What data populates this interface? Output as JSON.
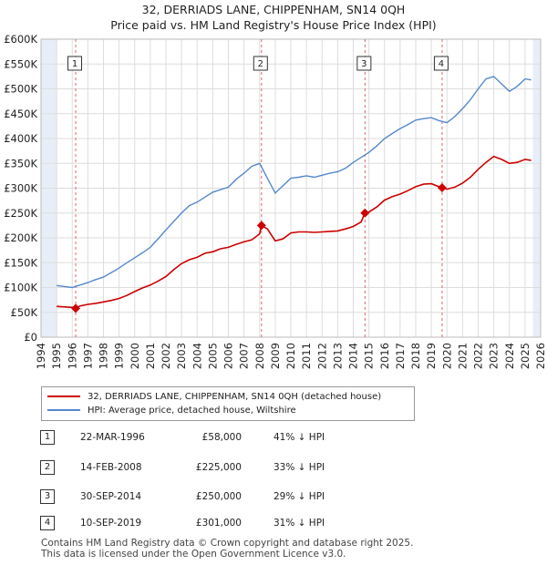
{
  "title": "32, DERRIADS LANE, CHIPPENHAM, SN14 0QH",
  "subtitle": "Price paid vs. HM Land Registry's House Price Index (HPI)",
  "legend": [
    {
      "label": "32, DERRIADS LANE, CHIPPENHAM, SN14 0QH (detached house)",
      "color": "#cc0000"
    },
    {
      "label": "HPI: Average price, detached house, Wiltshire",
      "color": "#5588cc"
    }
  ],
  "sales": [
    {
      "num": "1",
      "date": "22-MAR-1996",
      "price": "£58,000",
      "hpi": "41% ↓ HPI",
      "t": 1996.22,
      "value": 58000
    },
    {
      "num": "2",
      "date": "14-FEB-2008",
      "price": "£225,000",
      "hpi": "33% ↓ HPI",
      "t": 2008.12,
      "value": 225000
    },
    {
      "num": "3",
      "date": "30-SEP-2014",
      "price": "£250,000",
      "hpi": "29% ↓ HPI",
      "t": 2014.75,
      "value": 250000
    },
    {
      "num": "4",
      "date": "10-SEP-2019",
      "price": "£301,000",
      "hpi": "31% ↓ HPI",
      "t": 2019.69,
      "value": 301000
    }
  ],
  "footer": {
    "line1": "Contains HM Land Registry data © Crown copyright and database right 2025.",
    "line2": "This data is licensed under the Open Government Licence v3.0."
  },
  "colors": {
    "property": "#cc0000",
    "hpi": "#5588cc",
    "shade": "#e8eef8",
    "grid": "#dddddd"
  },
  "chart_data": {
    "type": "line",
    "title": "32, DERRIADS LANE, CHIPPENHAM, SN14 0QH",
    "xlabel": "",
    "ylabel": "",
    "xlim": [
      1994,
      2026
    ],
    "ylim": [
      0,
      600000
    ],
    "x_ticks": [
      1994,
      1995,
      1996,
      1997,
      1998,
      1999,
      2000,
      2001,
      2002,
      2003,
      2004,
      2005,
      2006,
      2007,
      2008,
      2009,
      2010,
      2011,
      2012,
      2013,
      2014,
      2015,
      2016,
      2017,
      2018,
      2019,
      2020,
      2021,
      2022,
      2023,
      2024,
      2025,
      2026
    ],
    "y_ticks": [
      0,
      50000,
      100000,
      150000,
      200000,
      250000,
      300000,
      350000,
      400000,
      450000,
      500000,
      550000,
      600000
    ],
    "y_tick_labels": [
      "£0",
      "£50K",
      "£100K",
      "£150K",
      "£200K",
      "£250K",
      "£300K",
      "£350K",
      "£400K",
      "£450K",
      "£500K",
      "£550K",
      "£600K"
    ],
    "grid": true,
    "shaded_ranges": [
      [
        1994,
        1995
      ],
      [
        2025.5,
        2026
      ]
    ],
    "series": [
      {
        "name": "32, DERRIADS LANE, CHIPPENHAM, SN14 0QH (detached house)",
        "x": [
          1995.0,
          1995.5,
          1996.0,
          1996.22,
          1996.5,
          1997.0,
          1997.5,
          1998.0,
          1998.5,
          1999.0,
          1999.5,
          2000.0,
          2000.5,
          2001.0,
          2001.5,
          2002.0,
          2002.5,
          2003.0,
          2003.5,
          2004.0,
          2004.5,
          2005.0,
          2005.5,
          2006.0,
          2006.5,
          2007.0,
          2007.5,
          2008.0,
          2008.12,
          2008.5,
          2009.0,
          2009.5,
          2010.0,
          2010.5,
          2011.0,
          2011.5,
          2012.0,
          2012.5,
          2013.0,
          2013.5,
          2014.0,
          2014.5,
          2014.75,
          2015.0,
          2015.5,
          2016.0,
          2016.5,
          2017.0,
          2017.5,
          2018.0,
          2018.5,
          2019.0,
          2019.5,
          2019.69,
          2020.0,
          2020.5,
          2021.0,
          2021.5,
          2022.0,
          2022.5,
          2023.0,
          2023.5,
          2024.0,
          2024.5,
          2025.0,
          2025.4
        ],
        "values": [
          62000,
          61000,
          60000,
          58000,
          63000,
          66000,
          68000,
          71000,
          74000,
          78000,
          84000,
          92000,
          99000,
          105000,
          113000,
          122000,
          136000,
          148000,
          156000,
          161000,
          169000,
          172000,
          178000,
          181000,
          187000,
          192000,
          196000,
          208000,
          225000,
          218000,
          194000,
          198000,
          210000,
          212000,
          212000,
          211000,
          212000,
          213000,
          214000,
          218000,
          223000,
          232000,
          250000,
          252000,
          262000,
          276000,
          283000,
          288000,
          295000,
          303000,
          308000,
          309000,
          303000,
          301000,
          298000,
          302000,
          310000,
          322000,
          338000,
          352000,
          364000,
          358000,
          350000,
          352000,
          358000,
          356000
        ]
      },
      {
        "name": "HPI: Average price, detached house, Wiltshire",
        "x": [
          1995.0,
          1995.5,
          1996.0,
          1996.5,
          1997.0,
          1997.5,
          1998.0,
          1998.5,
          1999.0,
          1999.5,
          2000.0,
          2000.5,
          2001.0,
          2001.5,
          2002.0,
          2002.5,
          2003.0,
          2003.5,
          2004.0,
          2004.5,
          2005.0,
          2005.5,
          2006.0,
          2006.5,
          2007.0,
          2007.5,
          2008.0,
          2008.5,
          2009.0,
          2009.5,
          2010.0,
          2010.5,
          2011.0,
          2011.5,
          2012.0,
          2012.5,
          2013.0,
          2013.5,
          2014.0,
          2014.5,
          2015.0,
          2015.5,
          2016.0,
          2016.5,
          2017.0,
          2017.5,
          2018.0,
          2018.5,
          2019.0,
          2019.5,
          2020.0,
          2020.5,
          2021.0,
          2021.5,
          2022.0,
          2022.5,
          2023.0,
          2023.5,
          2024.0,
          2024.5,
          2025.0,
          2025.4
        ],
        "values": [
          104000,
          102000,
          100000,
          105000,
          110000,
          116000,
          121000,
          130000,
          139000,
          150000,
          160000,
          170000,
          181000,
          198000,
          216000,
          233000,
          250000,
          265000,
          272000,
          282000,
          292000,
          297000,
          302000,
          318000,
          330000,
          344000,
          350000,
          320000,
          290000,
          305000,
          320000,
          322000,
          325000,
          322000,
          326000,
          330000,
          333000,
          340000,
          352000,
          362000,
          372000,
          385000,
          400000,
          410000,
          420000,
          428000,
          437000,
          440000,
          442000,
          436000,
          432000,
          444000,
          460000,
          478000,
          500000,
          520000,
          525000,
          510000,
          495000,
          505000,
          520000,
          518000
        ]
      }
    ],
    "annotations": [
      "1",
      "2",
      "3",
      "4"
    ]
  }
}
